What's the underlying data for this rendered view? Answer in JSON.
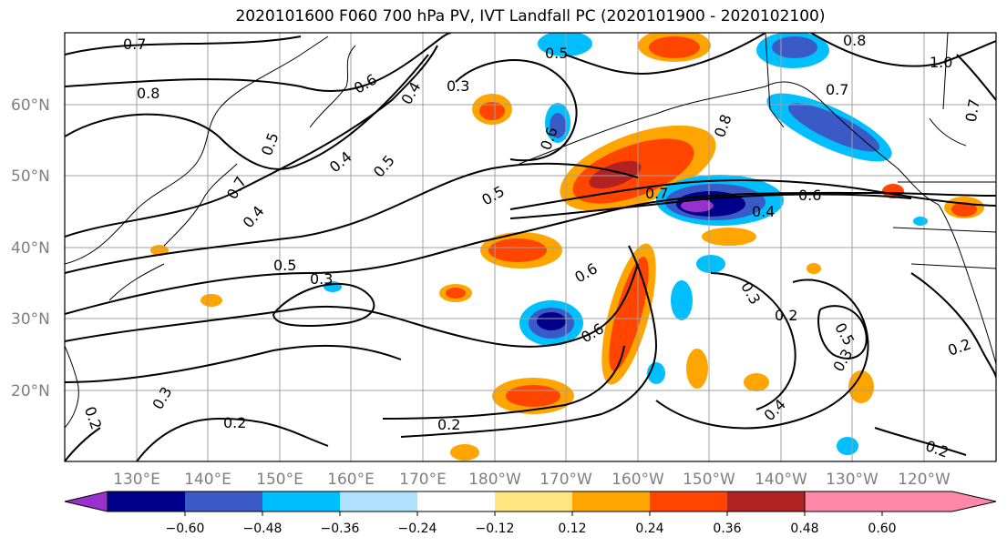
{
  "title": "2020101600 F060 700 hPa PV, IVT Landfall PC (2020101900 - 2020102100)",
  "lat_labels": [
    "60°N",
    "50°N",
    "40°N",
    "30°N",
    "20°N"
  ],
  "lat_values": [
    60,
    50,
    40,
    30,
    20
  ],
  "lon_labels": [
    "130°E",
    "140°E",
    "150°E",
    "160°E",
    "170°E",
    "180°W",
    "170°W",
    "160°W",
    "150°W",
    "140°W",
    "130°W",
    "120°W"
  ],
  "lon_values": [
    130,
    140,
    150,
    160,
    170,
    180,
    190,
    200,
    210,
    220,
    230,
    240
  ],
  "map_extent": {
    "lon_min": 120,
    "lon_max": 250,
    "lat_min": 10,
    "lat_max": 70
  },
  "colorbar": {
    "ticks": [
      "−0.60",
      "−0.48",
      "−0.36",
      "−0.24",
      "−0.12",
      "0.12",
      "0.24",
      "0.36",
      "0.48",
      "0.60"
    ],
    "colors": [
      "#9932cc",
      "#00008b",
      "#3a5bc7",
      "#00bfff",
      "#b0e2ff",
      "#ffffff",
      "#ffe680",
      "#ffa500",
      "#ff4500",
      "#b22222",
      "#ff88aa"
    ]
  },
  "contour_labels": [
    "0.7",
    "0.8",
    "0.6",
    "0.4",
    "0.3",
    "0.5",
    "0.4",
    "0.5",
    "0.7",
    "0.4",
    "0.5",
    "0.3",
    "0.2",
    "0.2",
    "0.3",
    "0.2",
    "0.5",
    "0.6",
    "0.6",
    "0.6",
    "0.5",
    "0.8",
    "0.7",
    "0.6",
    "0.4",
    "0.7",
    "1.0",
    "0.8",
    "0.7",
    "0.3",
    "0.2",
    "0.5",
    "0.3",
    "0.4",
    "0.2",
    "0.2"
  ]
}
